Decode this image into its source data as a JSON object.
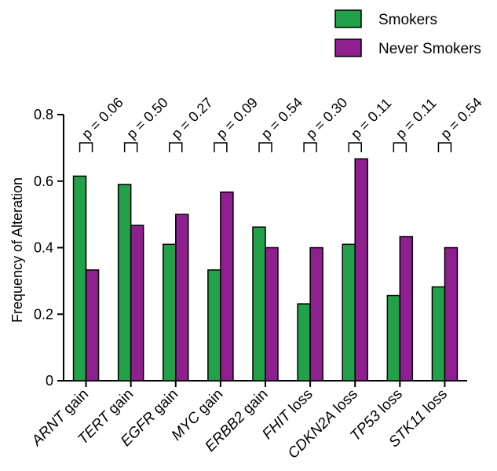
{
  "chart_data": {
    "type": "bar",
    "ylabel": "Frequency of Alteration",
    "xlabel": "",
    "ylim": [
      0,
      0.8
    ],
    "yticks": [
      "0",
      "0.2",
      "0.4",
      "0.6",
      "0.8"
    ],
    "legend_position": "top-right",
    "categories": [
      {
        "gene": "ARNT",
        "event": " gain"
      },
      {
        "gene": "TERT",
        "event": " gain"
      },
      {
        "gene": "EGFR",
        "event": " gain"
      },
      {
        "gene": "MYC",
        "event": " gain"
      },
      {
        "gene": "ERBB2",
        "event": " gain"
      },
      {
        "gene": "FHIT",
        "event": " loss"
      },
      {
        "gene": "CDKN2A",
        "event": " loss"
      },
      {
        "gene": "TP53",
        "event": " loss"
      },
      {
        "gene": "STK11",
        "event": " loss"
      }
    ],
    "series": [
      {
        "name": "Smokers",
        "color": "#22a14a",
        "values": [
          0.615,
          0.59,
          0.41,
          0.333,
          0.462,
          0.231,
          0.41,
          0.256,
          0.282
        ]
      },
      {
        "name": "Never Smokers",
        "color": "#8e1f8e",
        "values": [
          0.333,
          0.467,
          0.5,
          0.567,
          0.4,
          0.4,
          0.667,
          0.433,
          0.4
        ]
      }
    ],
    "annotations": [
      "p = 0.06",
      "p = 0.50",
      "p = 0.27",
      "p = 0.09",
      "p = 0.54",
      "p = 0.30",
      "p = 0.11",
      "p = 0.11",
      "p = 0.54"
    ]
  }
}
